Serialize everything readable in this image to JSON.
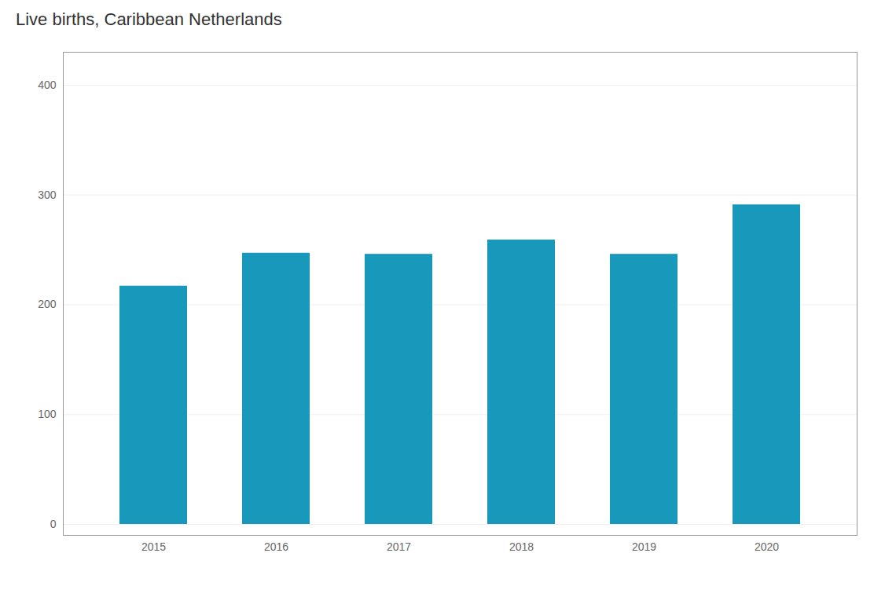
{
  "chart_data": {
    "type": "bar",
    "title": "Live births, Caribbean Netherlands",
    "categories": [
      "2015",
      "2016",
      "2017",
      "2018",
      "2019",
      "2020"
    ],
    "values": [
      217,
      247,
      246,
      259,
      246,
      291
    ],
    "color": "#1899BC",
    "ylim": [
      -10,
      430
    ],
    "yticks": [
      0,
      100,
      200,
      300,
      400
    ],
    "grid": true
  }
}
